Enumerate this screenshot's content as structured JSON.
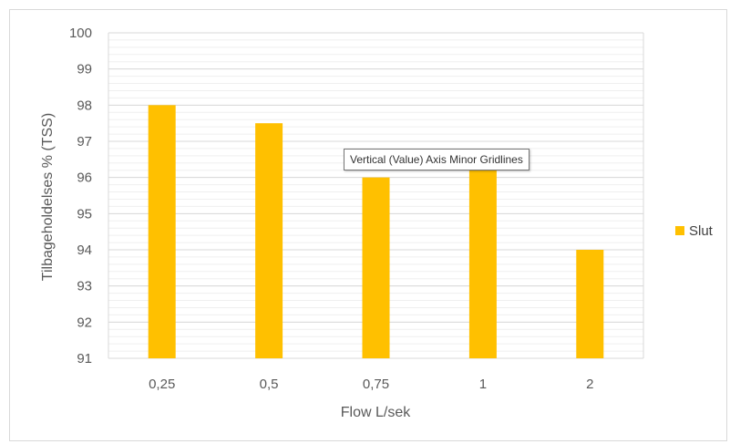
{
  "chart_data": {
    "type": "bar",
    "categories": [
      "0,25",
      "0,5",
      "0,75",
      "1",
      "2"
    ],
    "series": [
      {
        "name": "Slut",
        "values": [
          98,
          97.5,
          96,
          96.2,
          94
        ],
        "color": "#FFC000"
      }
    ],
    "title": "",
    "xlabel": "Flow L/sek",
    "ylabel": "Tilbageholdelses % (TSS)",
    "ylim": [
      91,
      100
    ],
    "yticks": [
      91,
      92,
      93,
      94,
      95,
      96,
      97,
      98,
      99,
      100
    ],
    "major_grid": true,
    "minor_grid": true,
    "legend_position": "right"
  },
  "tooltip": {
    "text": "Vertical (Value) Axis Minor Gridlines"
  },
  "colors": {
    "grid_major": "#d9d9d9",
    "grid_minor": "#efefef",
    "axis_text": "#595959"
  }
}
